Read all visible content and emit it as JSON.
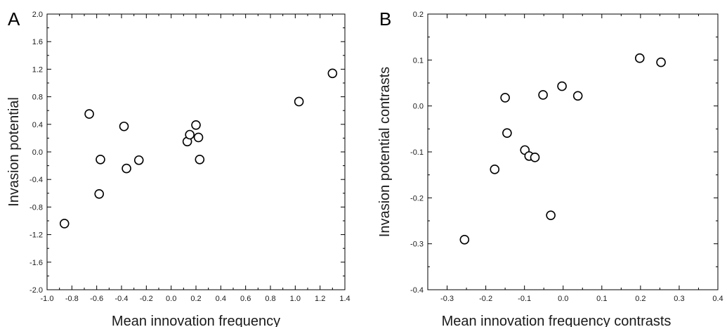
{
  "chart_data": [
    {
      "type": "scatter",
      "panel_letter": "A",
      "title": "",
      "xlabel": "Mean innovation frequency",
      "ylabel": "Invasion potential",
      "xlim": [
        -1.0,
        1.4
      ],
      "ylim": [
        -2.0,
        2.0
      ],
      "x_ticks": [
        -1.0,
        -0.8,
        -0.6,
        -0.4,
        -0.2,
        0.0,
        0.2,
        0.4,
        0.6,
        0.8,
        1.0,
        1.2,
        1.4
      ],
      "x_tick_labels": [
        "-1.0",
        "-0.8",
        "-0.6",
        "-0.4",
        "-0.2",
        "0.0",
        "0.2",
        "0.4",
        "0.6",
        "0.8",
        "1.0",
        "1.2",
        "1.4"
      ],
      "y_ticks": [
        -2.0,
        -1.6,
        -1.2,
        -0.8,
        -0.4,
        0.0,
        0.4,
        0.8,
        1.2,
        1.6,
        2.0
      ],
      "y_tick_labels": [
        "-2.0",
        "-1.6",
        "-1.2",
        "-0.8",
        "-0.4",
        "0.0",
        "0.4",
        "0.8",
        "1.2",
        "1.6",
        "2.0"
      ],
      "grid": false,
      "points": [
        {
          "x": -0.86,
          "y": -1.04
        },
        {
          "x": -0.66,
          "y": 0.55
        },
        {
          "x": -0.57,
          "y": -0.11
        },
        {
          "x": -0.58,
          "y": -0.61
        },
        {
          "x": -0.38,
          "y": 0.37
        },
        {
          "x": -0.36,
          "y": -0.24
        },
        {
          "x": -0.26,
          "y": -0.12
        },
        {
          "x": 0.13,
          "y": 0.15
        },
        {
          "x": 0.15,
          "y": 0.25
        },
        {
          "x": 0.2,
          "y": 0.39
        },
        {
          "x": 0.22,
          "y": 0.21
        },
        {
          "x": 0.23,
          "y": -0.11
        },
        {
          "x": 1.03,
          "y": 0.73
        },
        {
          "x": 1.3,
          "y": 1.14
        }
      ]
    },
    {
      "type": "scatter",
      "panel_letter": "B",
      "title": "",
      "xlabel": "Mean innovation frequency contrasts",
      "ylabel": "Invasion potential contrasts",
      "xlim": [
        -0.35,
        0.4
      ],
      "ylim": [
        -0.4,
        0.2
      ],
      "x_ticks": [
        -0.3,
        -0.2,
        -0.1,
        0.0,
        0.1,
        0.2,
        0.3,
        0.4
      ],
      "x_tick_labels": [
        "-0.3",
        "-0.2",
        "-0.1",
        "0.0",
        "0.1",
        "0.2",
        "0.3",
        "0.4"
      ],
      "y_ticks": [
        -0.4,
        -0.3,
        -0.2,
        -0.1,
        0.0,
        0.1,
        0.2
      ],
      "y_tick_labels": [
        "-0.4",
        "-0.3",
        "-0.2",
        "-0.1",
        "0.0",
        "0.1",
        "0.2"
      ],
      "grid": false,
      "points": [
        {
          "x": -0.255,
          "y": -0.291
        },
        {
          "x": -0.177,
          "y": -0.138
        },
        {
          "x": -0.15,
          "y": 0.018
        },
        {
          "x": -0.145,
          "y": -0.059
        },
        {
          "x": -0.099,
          "y": -0.096
        },
        {
          "x": -0.088,
          "y": -0.109
        },
        {
          "x": -0.073,
          "y": -0.112
        },
        {
          "x": -0.052,
          "y": 0.024
        },
        {
          "x": -0.032,
          "y": -0.238
        },
        {
          "x": -0.003,
          "y": 0.043
        },
        {
          "x": 0.038,
          "y": 0.022
        },
        {
          "x": 0.198,
          "y": 0.104
        },
        {
          "x": 0.253,
          "y": 0.095
        }
      ]
    }
  ]
}
